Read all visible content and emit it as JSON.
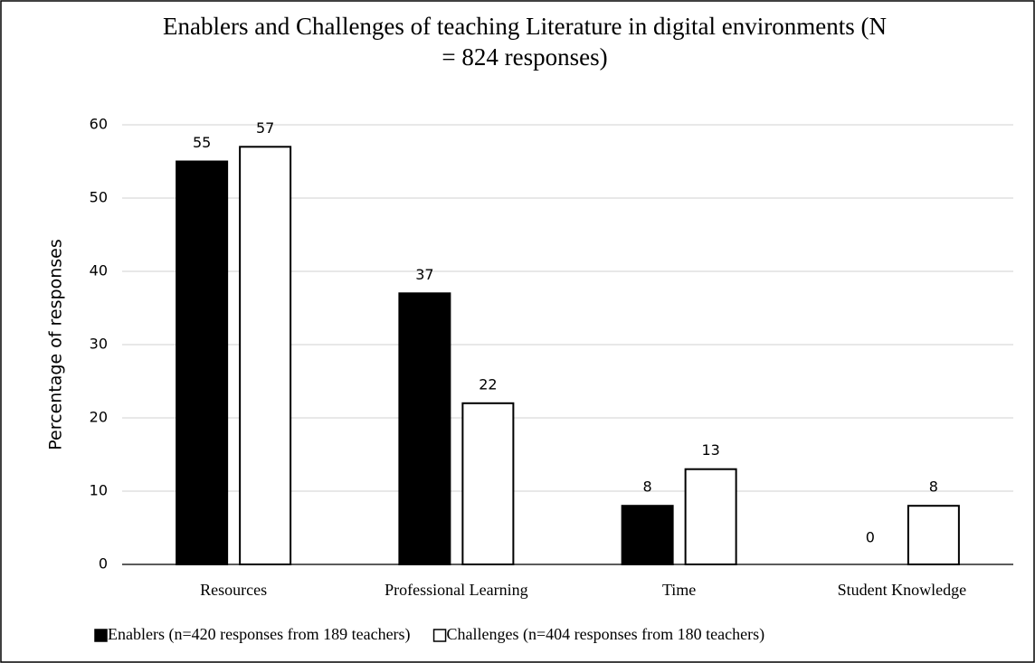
{
  "chart_data": {
    "type": "bar",
    "title": "Enablers and Challenges of teaching Literature in digital environments (N = 824 responses)",
    "y_label": "Percentage of responses",
    "categories": [
      "Resources",
      "Professional Learning",
      "Time",
      "Student Knowledge"
    ],
    "series": [
      {
        "name": "Enablers (n=420 responses from 189 teachers)",
        "color": "#000000",
        "values": [
          55,
          37,
          8,
          0
        ]
      },
      {
        "name": "Challenges (n=404 responses from 180 teachers)",
        "color": "#ffffff",
        "values": [
          57,
          22,
          13,
          8
        ]
      }
    ],
    "ylim": [
      0,
      60
    ],
    "yticks": [
      0,
      10,
      20,
      30,
      40,
      50,
      60
    ],
    "grid": true,
    "legend": "bottom"
  }
}
